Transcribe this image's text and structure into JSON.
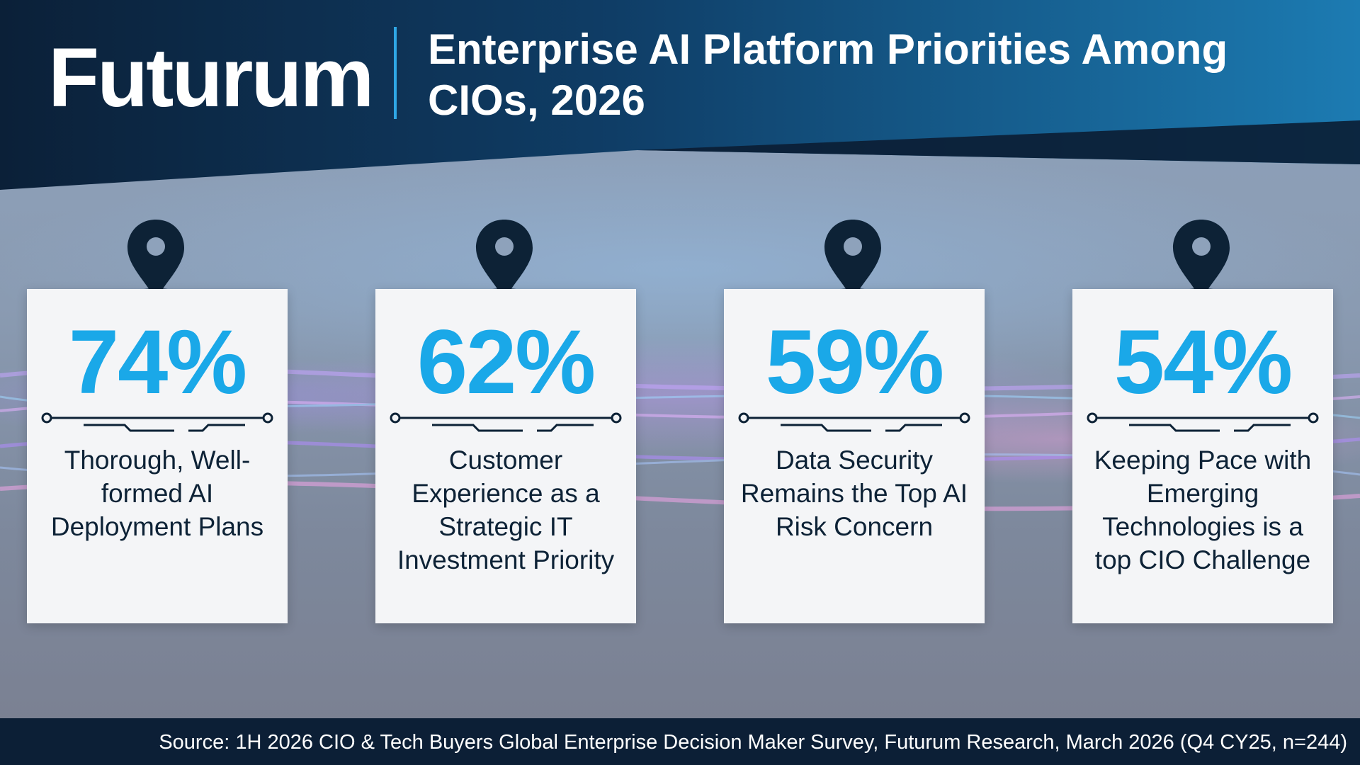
{
  "brand": {
    "logo_text": "Futurum"
  },
  "header": {
    "title": "Enterprise AI Platform Priorities Among CIOs, 2026"
  },
  "cards": [
    {
      "stat": "74%",
      "label": "Thorough, Well-formed AI Deployment Plans",
      "icon": "location-pin-icon"
    },
    {
      "stat": "62%",
      "label": "Customer Experience as a Strategic IT Investment Priority",
      "icon": "location-pin-icon"
    },
    {
      "stat": "59%",
      "label": "Data Security Remains the Top AI Risk Concern",
      "icon": "location-pin-icon"
    },
    {
      "stat": "54%",
      "label": "Keeping Pace with Emerging Technologies is a top CIO Challenge",
      "icon": "location-pin-icon"
    }
  ],
  "footer": {
    "source": "Source: 1H 2026 CIO & Tech Buyers Global Enterprise Decision Maker Survey, Futurum Research, March 2026 (Q4 CY25, n=244)"
  },
  "colors": {
    "header_dark": "#0c2540",
    "header_blue": "#1a6fa0",
    "accent_blue": "#1aa8e8",
    "card_bg": "#f4f5f7",
    "text_dark": "#0d2236",
    "footer_bg": "#0c1f36"
  }
}
